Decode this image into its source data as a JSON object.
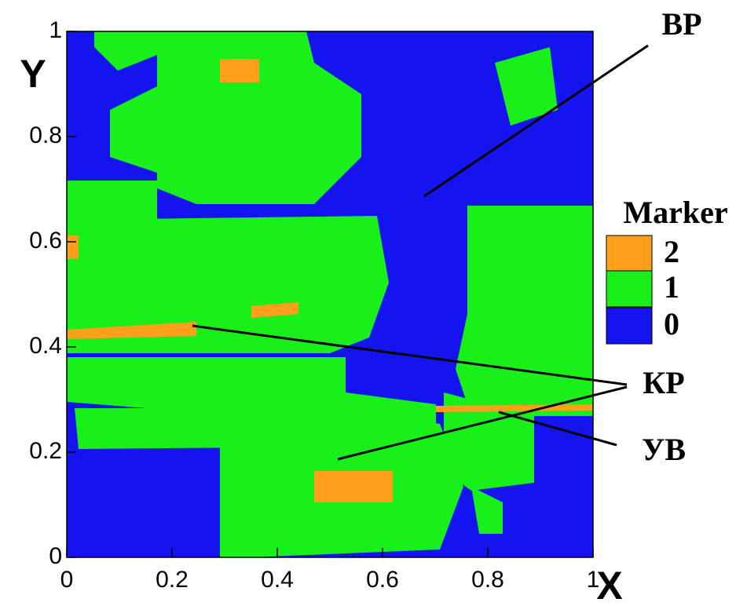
{
  "chart_data": {
    "type": "contour",
    "x_label": "X",
    "y_label": "Y",
    "xlim": [
      0,
      1
    ],
    "ylim": [
      0,
      1
    ],
    "xticks": [
      0,
      0.2,
      0.4,
      0.6,
      0.8,
      1
    ],
    "yticks": [
      0,
      0.2,
      0.4,
      0.6,
      0.8,
      1
    ],
    "legend_title": "Marker",
    "levels": [
      2,
      1,
      0
    ],
    "level_colors": [
      "#ff9f1a",
      "#19f019",
      "#1414f0"
    ],
    "annotations": [
      "ВР",
      "КР",
      "УВ"
    ]
  }
}
